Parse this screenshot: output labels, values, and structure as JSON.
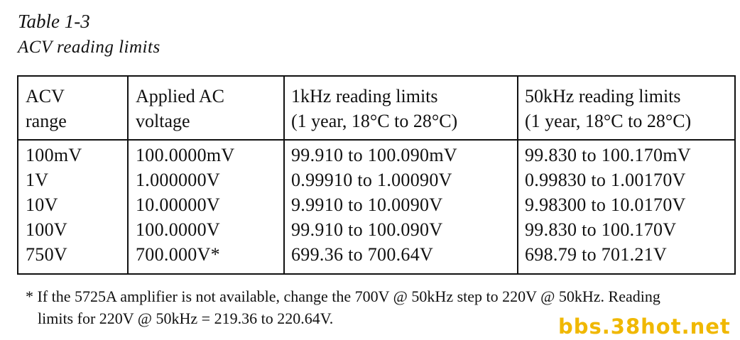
{
  "caption": {
    "title": "Table 1-3",
    "subtitle": "ACV reading limits"
  },
  "table": {
    "headers": [
      {
        "line1": "ACV",
        "line2": "range"
      },
      {
        "line1": "Applied AC",
        "line2": "voltage"
      },
      {
        "line1": "1kHz reading limits",
        "line2": "(1 year, 18°C to 28°C)"
      },
      {
        "line1": "50kHz reading limits",
        "line2": "(1 year, 18°C to 28°C)"
      }
    ],
    "rows": [
      [
        "100mV",
        "100.0000mV",
        "99.910 to 100.090mV",
        "99.830 to 100.170mV"
      ],
      [
        "1V",
        "1.000000V",
        "0.99910 to 1.00090V",
        "0.99830 to 1.00170V"
      ],
      [
        "10V",
        "10.00000V",
        "9.9910 to 10.0090V",
        "9.98300 to 10.0170V"
      ],
      [
        "100V",
        "100.0000V",
        "99.910 to 100.090V",
        "99.830 to 100.170V"
      ],
      [
        "750V",
        "700.000V*",
        "699.36 to 700.64V",
        "698.79 to 701.21V"
      ]
    ]
  },
  "footnote": {
    "line1": "* If the 5725A amplifier is not available, change the 700V @ 50kHz step to 220V @ 50kHz. Reading",
    "line2": "limits for 220V @ 50kHz = 219.36 to 220.64V."
  },
  "watermark": {
    "text": "bbs.38hot.net",
    "color": "#f0b800"
  }
}
